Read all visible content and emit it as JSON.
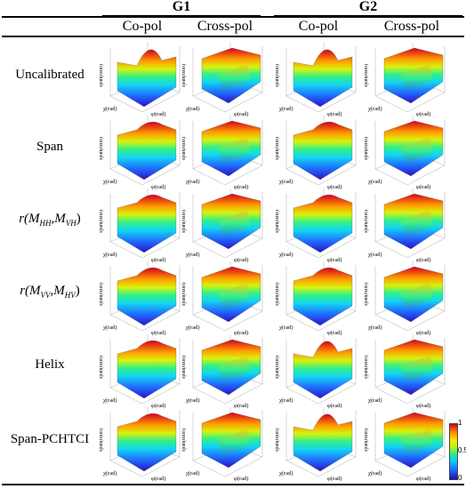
{
  "header": {
    "group1": "G1",
    "group2": "G2",
    "cols": [
      "Co-pol",
      "Cross-pol",
      "Co-pol",
      "Cross-pol"
    ]
  },
  "rows": [
    {
      "label": "Uncalibrated"
    },
    {
      "label": "Span"
    },
    {
      "label_prefix": "r(",
      "m1": "M",
      "s1": "HH",
      "m2": "M",
      "s2": "VH",
      "label_suffix": ")"
    },
    {
      "label_prefix": "r(",
      "m1": "M",
      "s1": "VV",
      "m2": "M",
      "s2": "HV",
      "label_suffix": ")"
    },
    {
      "label": "Helix"
    },
    {
      "label": "Span-PCHTCI"
    }
  ],
  "axis": {
    "zlabel": "span(ratio)",
    "xlabel": "χ(rad)",
    "ylabel": "φ(rad)"
  },
  "colorbar": {
    "max": "1",
    "mid": "0.5",
    "min": "0"
  }
}
